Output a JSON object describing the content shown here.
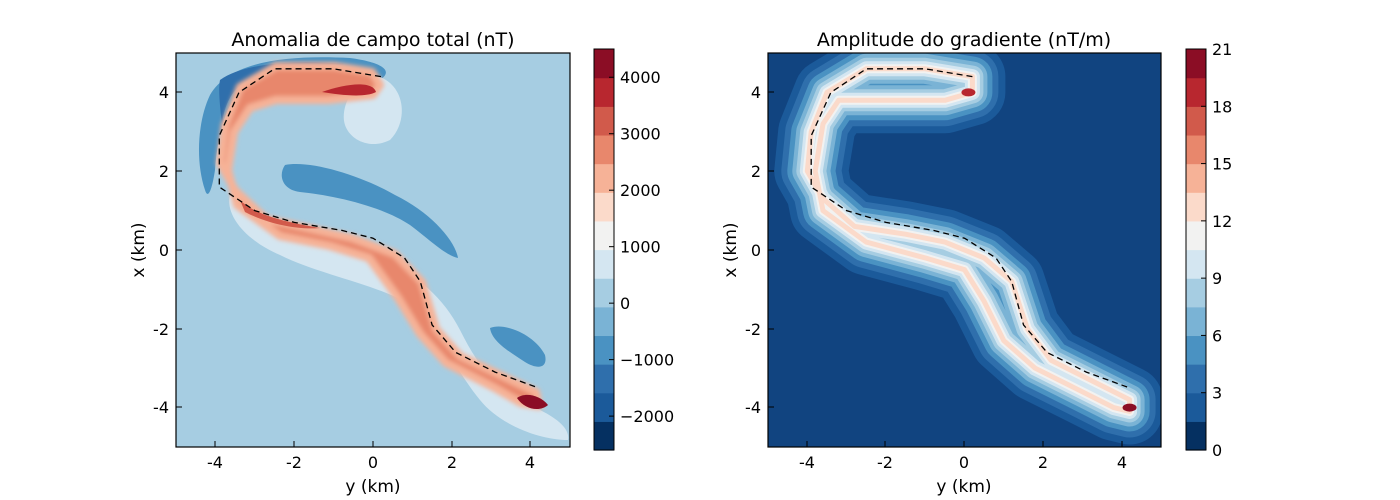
{
  "chart_data": [
    {
      "type": "heatmap",
      "title": "Anomalia de campo total (nT)",
      "xlabel": "y (km)",
      "ylabel": "x (km)",
      "xlim": [
        -5,
        5
      ],
      "ylim": [
        -5,
        5
      ],
      "xticks": [
        "-4",
        "-2",
        "0",
        "2",
        "4"
      ],
      "yticks": [
        "4",
        "2",
        "0",
        "-2",
        "-4"
      ],
      "colorbar": {
        "range": [
          -2600,
          4500
        ],
        "ticks": [
          "4000",
          "3000",
          "2000",
          "1000",
          "0",
          "−1000",
          "−2000"
        ],
        "tick_values": [
          4000,
          3000,
          2000,
          1000,
          0,
          -1000,
          -2000
        ],
        "levels": [
          -2500,
          -2000,
          -1500,
          -1000,
          -500,
          0,
          500,
          1000,
          1500,
          2000,
          2500,
          3000,
          3500,
          4000,
          4500
        ]
      },
      "body_outline_path": [
        [
          0.2,
          4.4
        ],
        [
          -1.0,
          4.6
        ],
        [
          -2.5,
          4.6
        ],
        [
          -3.5,
          4.0
        ],
        [
          -3.9,
          3.0
        ],
        [
          -4.0,
          2.0
        ],
        [
          -3.6,
          1.3
        ],
        [
          -2.8,
          0.6
        ],
        [
          -1.5,
          0.4
        ],
        [
          -0.5,
          0.2
        ],
        [
          0.5,
          -0.2
        ],
        [
          1.2,
          -0.8
        ],
        [
          1.6,
          -2.0
        ],
        [
          2.2,
          -2.8
        ],
        [
          3.2,
          -3.3
        ],
        [
          4.2,
          -3.8
        ],
        [
          4.2,
          -4.1
        ],
        [
          3.8,
          -4.0
        ],
        [
          3.0,
          -3.6
        ],
        [
          1.8,
          -3.0
        ],
        [
          1.0,
          -2.3
        ],
        [
          0.5,
          -1.3
        ],
        [
          0.0,
          -0.5
        ],
        [
          -1.0,
          -0.2
        ],
        [
          -2.5,
          0.2
        ],
        [
          -3.6,
          1.0
        ],
        [
          -3.8,
          2.0
        ],
        [
          -3.6,
          3.2
        ],
        [
          -3.2,
          3.8
        ],
        [
          -1.8,
          3.8
        ],
        [
          -0.5,
          3.8
        ],
        [
          0.2,
          4.0
        ]
      ],
      "dashed_contour": [
        [
          0.2,
          4.4
        ],
        [
          -1.0,
          4.6
        ],
        [
          -2.5,
          4.6
        ],
        [
          -3.4,
          4.0
        ],
        [
          -3.9,
          2.9
        ],
        [
          -3.9,
          1.6
        ],
        [
          -3.0,
          1.0
        ],
        [
          -2.0,
          0.7
        ],
        [
          -0.8,
          0.5
        ],
        [
          0.0,
          0.3
        ],
        [
          0.8,
          -0.2
        ],
        [
          1.2,
          -0.8
        ],
        [
          1.5,
          -1.9
        ],
        [
          2.1,
          -2.6
        ],
        [
          3.1,
          -3.1
        ],
        [
          4.2,
          -3.5
        ]
      ]
    },
    {
      "type": "heatmap",
      "title": "Amplitude do gradiente (nT/m)",
      "xlabel": "y (km)",
      "ylabel": "x (km)",
      "xlim": [
        -5,
        5
      ],
      "ylim": [
        -5,
        5
      ],
      "xticks": [
        "-4",
        "-2",
        "0",
        "2",
        "4"
      ],
      "yticks": [
        "4",
        "2",
        "0",
        "-2",
        "-4"
      ],
      "colorbar": {
        "range": [
          0,
          21
        ],
        "ticks": [
          "21",
          "18",
          "15",
          "12",
          "9",
          "6",
          "3",
          "0"
        ],
        "tick_values": [
          21,
          18,
          15,
          12,
          9,
          6,
          3,
          0
        ],
        "levels": [
          0,
          1.5,
          3,
          4.5,
          6,
          7.5,
          9,
          10.5,
          12,
          13.5,
          15,
          16.5,
          18,
          19.5,
          21
        ]
      },
      "body_outline_path": [
        [
          0.2,
          4.4
        ],
        [
          -1.0,
          4.6
        ],
        [
          -2.5,
          4.6
        ],
        [
          -3.5,
          4.0
        ],
        [
          -3.9,
          3.0
        ],
        [
          -4.0,
          2.0
        ],
        [
          -3.6,
          1.3
        ],
        [
          -2.8,
          0.6
        ],
        [
          -1.5,
          0.4
        ],
        [
          -0.5,
          0.2
        ],
        [
          0.5,
          -0.2
        ],
        [
          1.2,
          -0.8
        ],
        [
          1.6,
          -2.0
        ],
        [
          2.2,
          -2.8
        ],
        [
          3.2,
          -3.3
        ],
        [
          4.2,
          -3.8
        ],
        [
          4.2,
          -4.1
        ],
        [
          3.8,
          -4.0
        ],
        [
          3.0,
          -3.6
        ],
        [
          1.8,
          -3.0
        ],
        [
          1.0,
          -2.3
        ],
        [
          0.5,
          -1.3
        ],
        [
          0.0,
          -0.5
        ],
        [
          -1.0,
          -0.2
        ],
        [
          -2.5,
          0.2
        ],
        [
          -3.6,
          1.0
        ],
        [
          -3.8,
          2.0
        ],
        [
          -3.6,
          3.2
        ],
        [
          -3.2,
          3.8
        ],
        [
          -1.8,
          3.8
        ],
        [
          -0.5,
          3.8
        ],
        [
          0.2,
          4.0
        ]
      ],
      "dashed_contour": [
        [
          0.2,
          4.4
        ],
        [
          -1.0,
          4.6
        ],
        [
          -2.5,
          4.6
        ],
        [
          -3.4,
          4.0
        ],
        [
          -3.9,
          2.9
        ],
        [
          -3.9,
          1.6
        ],
        [
          -3.0,
          1.0
        ],
        [
          -2.0,
          0.7
        ],
        [
          -0.8,
          0.5
        ],
        [
          0.0,
          0.3
        ],
        [
          0.8,
          -0.2
        ],
        [
          1.2,
          -0.8
        ],
        [
          1.5,
          -1.9
        ],
        [
          2.1,
          -2.6
        ],
        [
          3.1,
          -3.1
        ],
        [
          4.2,
          -3.5
        ]
      ]
    }
  ],
  "colors": {
    "rdbu_levels": [
      "#053061",
      "#1b5a9a",
      "#2f6fac",
      "#4a92c2",
      "#7ab3d5",
      "#a6cde2",
      "#d4e6f1",
      "#f2f2f1",
      "#fbdaca",
      "#f6b297",
      "#e8876c",
      "#d15a4b",
      "#b8272f",
      "#8b0d25"
    ],
    "background_neg": "#a6cde2",
    "background_grad": "#114480",
    "contour": "#000000"
  }
}
